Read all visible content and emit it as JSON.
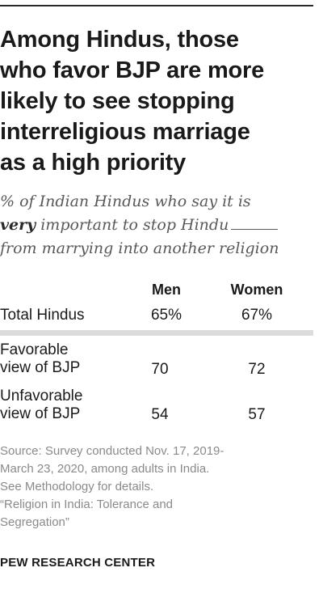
{
  "title_lines": [
    "Among Hindus, those",
    "who favor BJP are more",
    "likely to see stopping",
    "interreligious marriage",
    "as a high priority"
  ],
  "subtitle": {
    "line1": "% of Indian Hindus who say it is",
    "emphasis": "very",
    "line2_rest": "important to stop Hindu",
    "line3": "from marrying into another religion"
  },
  "chart_data": {
    "type": "table",
    "columns": [
      "Men",
      "Women"
    ],
    "rows": [
      {
        "label_lines": [
          "Total Hindus"
        ],
        "values": [
          "65%",
          "67%"
        ]
      },
      {
        "label_lines": [
          "Favorable",
          "view of BJP"
        ],
        "values": [
          "70",
          "72"
        ]
      },
      {
        "label_lines": [
          "Unfavorable",
          "view of BJP"
        ],
        "values": [
          "54",
          "57"
        ]
      }
    ]
  },
  "source_lines": [
    "Source: Survey conducted Nov. 17, 2019-",
    "March 23, 2020, among adults in India.",
    "See Methodology for details.",
    "“Religion in India: Tolerance and",
    "Segregation”"
  ],
  "brand": "PEW RESEARCH CENTER",
  "colors": {
    "text": "#1a1a1a",
    "subtitle": "#595959",
    "source": "#8a8a8a",
    "divider": "#dcdcdc"
  }
}
